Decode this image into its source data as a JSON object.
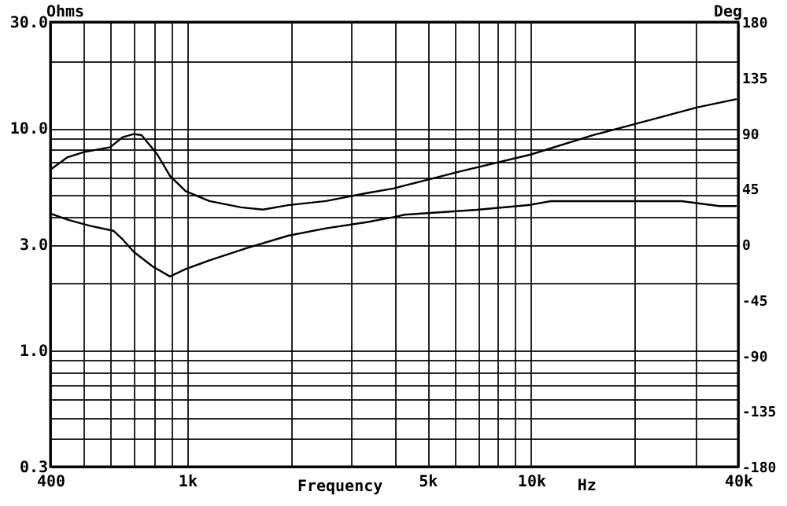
{
  "chart_data": {
    "type": "line",
    "xlabel": "Frequency",
    "ylabel": "Ohms",
    "y2label": "Deg",
    "annotations": [
      "Hz"
    ],
    "log": "xy",
    "grid": true,
    "xlim": [
      400,
      40000
    ],
    "xticks": [
      {
        "value": 400,
        "label": "400"
      },
      {
        "value": 500,
        "label": null
      },
      {
        "value": 600,
        "label": null
      },
      {
        "value": 700,
        "label": null
      },
      {
        "value": 800,
        "label": null
      },
      {
        "value": 900,
        "label": null
      },
      {
        "value": 1000,
        "label": "1k"
      },
      {
        "value": 2000,
        "label": null
      },
      {
        "value": 3000,
        "label": null
      },
      {
        "value": 4000,
        "label": null
      },
      {
        "value": 5000,
        "label": "5k"
      },
      {
        "value": 6000,
        "label": null
      },
      {
        "value": 7000,
        "label": null
      },
      {
        "value": 8000,
        "label": null
      },
      {
        "value": 9000,
        "label": null
      },
      {
        "value": 10000,
        "label": "10k"
      },
      {
        "value": 20000,
        "label": null
      },
      {
        "value": 30000,
        "label": null
      },
      {
        "value": 40000,
        "label": "40k"
      }
    ],
    "ylim": [
      0.3,
      30
    ],
    "yticks": [
      {
        "value": 0.3,
        "label": "0.3"
      },
      {
        "value": 0.4,
        "label": null
      },
      {
        "value": 0.5,
        "label": null
      },
      {
        "value": 0.6,
        "label": null
      },
      {
        "value": 0.7,
        "label": null
      },
      {
        "value": 0.8,
        "label": null
      },
      {
        "value": 0.9,
        "label": null
      },
      {
        "value": 1,
        "label": "1.0"
      },
      {
        "value": 2,
        "label": null
      },
      {
        "value": 3,
        "label": "3.0"
      },
      {
        "value": 4,
        "label": null
      },
      {
        "value": 5,
        "label": null
      },
      {
        "value": 6,
        "label": null
      },
      {
        "value": 7,
        "label": null
      },
      {
        "value": 8,
        "label": null
      },
      {
        "value": 9,
        "label": null
      },
      {
        "value": 10,
        "label": "10.0"
      },
      {
        "value": 20,
        "label": null
      },
      {
        "value": 30,
        "label": "30.0"
      }
    ],
    "y2lim": [
      -180,
      180
    ],
    "y2ticks": [
      -180,
      -135,
      -90,
      -45,
      0,
      45,
      90,
      135,
      180
    ],
    "series": [
      {
        "color": "#000000",
        "x": [
          400,
          449,
          500,
          597,
          649,
          699,
          737,
          819,
          891,
          990,
          1160,
          1432,
          1660,
          1964,
          2530,
          3327,
          3980,
          6257,
          9955,
          15170,
          19940,
          30410,
          39600
        ],
        "values": [
          6.5,
          7.4,
          7.8,
          8.2,
          9.1,
          9.4,
          9.3,
          7.6,
          6.1,
          5.2,
          4.7,
          4.4,
          4.3,
          4.5,
          4.7,
          5.1,
          5.35,
          6.4,
          7.6,
          9.3,
          10.4,
          12.4,
          13.5
        ]
      },
      {
        "color": "#000000",
        "axis": "y2",
        "x": [
          400,
          449,
          521,
          610,
          649,
          699,
          794,
          891,
          990,
          1160,
          1493,
          1964,
          2530,
          3327,
          3980,
          4285,
          6955,
          9955,
          11410,
          19940,
          27370,
          35250,
          39600
        ],
        "values": [
          25,
          20,
          15,
          11,
          4,
          -6,
          -18,
          -26,
          -20,
          -13,
          -3,
          7,
          13,
          18,
          22,
          24,
          28,
          32,
          35,
          35,
          35,
          31,
          31
        ]
      }
    ]
  }
}
